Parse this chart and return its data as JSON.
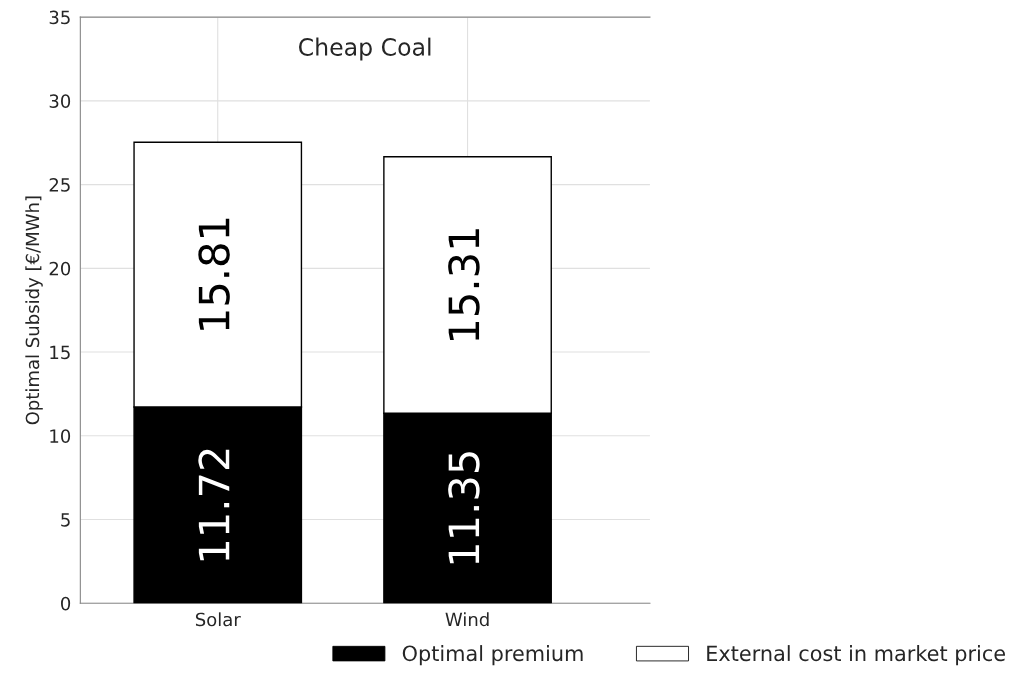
{
  "chart_data": {
    "type": "bar",
    "title": "Cheap Coal",
    "ylabel": "Optimal Subsidy [€/MWh]",
    "categories": [
      "Solar",
      "Wind"
    ],
    "stacked": true,
    "series": [
      {
        "name": "Optimal premium",
        "color": "#000000",
        "values": [
          11.72,
          11.35
        ]
      },
      {
        "name": "External cost in market price",
        "color": "#ffffff",
        "values": [
          15.81,
          15.31
        ]
      }
    ],
    "ylim": [
      0,
      35
    ],
    "yticks": [
      0,
      5,
      10,
      15,
      20,
      25,
      30,
      35
    ],
    "grid": true,
    "legend": "bottom",
    "data_labels": true
  }
}
